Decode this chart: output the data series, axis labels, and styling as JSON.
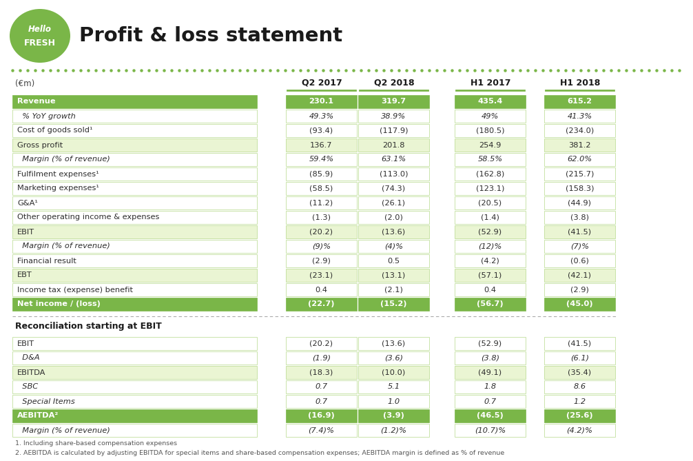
{
  "title": "Profit & loss statement",
  "currency_label": "(€m)",
  "columns": [
    "Q2 2017",
    "Q2 2018",
    "H1 2017",
    "H1 2018"
  ],
  "green_dark": "#7AB648",
  "green_light": "#EAF5D3",
  "white": "#FFFFFF",
  "section1_rows": [
    {
      "label": "Revenue",
      "values": [
        "230.1",
        "319.7",
        "435.4",
        "615.2"
      ],
      "style": "dark_green"
    },
    {
      "label": "  % YoY growth",
      "values": [
        "49.3%",
        "38.9%",
        "49%",
        "41.3%"
      ],
      "style": "italic_plain"
    },
    {
      "label": "Cost of goods sold¹",
      "values": [
        "(93.4)",
        "(117.9)",
        "(180.5)",
        "(234.0)"
      ],
      "style": "plain"
    },
    {
      "label": "Gross profit",
      "values": [
        "136.7",
        "201.8",
        "254.9",
        "381.2"
      ],
      "style": "light_green"
    },
    {
      "label": "  Margin (% of revenue)",
      "values": [
        "59.4%",
        "63.1%",
        "58.5%",
        "62.0%"
      ],
      "style": "italic_plain"
    },
    {
      "label": "Fulfilment expenses¹",
      "values": [
        "(85.9)",
        "(113.0)",
        "(162.8)",
        "(215.7)"
      ],
      "style": "plain"
    },
    {
      "label": "Marketing expenses¹",
      "values": [
        "(58.5)",
        "(74.3)",
        "(123.1)",
        "(158.3)"
      ],
      "style": "plain"
    },
    {
      "label": "G&A¹",
      "values": [
        "(11.2)",
        "(26.1)",
        "(20.5)",
        "(44.9)"
      ],
      "style": "plain"
    },
    {
      "label": "Other operating income & expenses",
      "values": [
        "(1.3)",
        "(2.0)",
        "(1.4)",
        "(3.8)"
      ],
      "style": "plain"
    },
    {
      "label": "EBIT",
      "values": [
        "(20.2)",
        "(13.6)",
        "(52.9)",
        "(41.5)"
      ],
      "style": "light_green"
    },
    {
      "label": "  Margin (% of revenue)",
      "values": [
        "(9)%",
        "(4)%",
        "(12)%",
        "(7)%"
      ],
      "style": "italic_plain"
    },
    {
      "label": "Financial result",
      "values": [
        "(2.9)",
        "0.5",
        "(4.2)",
        "(0.6)"
      ],
      "style": "plain"
    },
    {
      "label": "EBT",
      "values": [
        "(23.1)",
        "(13.1)",
        "(57.1)",
        "(42.1)"
      ],
      "style": "light_green"
    },
    {
      "label": "Income tax (expense) benefit",
      "values": [
        "0.4",
        "(2.1)",
        "0.4",
        "(2.9)"
      ],
      "style": "plain"
    },
    {
      "label": "Net income / (loss)",
      "values": [
        "(22.7)",
        "(15.2)",
        "(56.7)",
        "(45.0)"
      ],
      "style": "dark_green"
    }
  ],
  "section2_title": "Reconciliation starting at EBIT",
  "section2_rows": [
    {
      "label": "EBIT",
      "values": [
        "(20.2)",
        "(13.6)",
        "(52.9)",
        "(41.5)"
      ],
      "style": "plain"
    },
    {
      "label": "  D&A",
      "values": [
        "(1.9)",
        "(3.6)",
        "(3.8)",
        "(6.1)"
      ],
      "style": "italic_plain"
    },
    {
      "label": "EBITDA",
      "values": [
        "(18.3)",
        "(10.0)",
        "(49.1)",
        "(35.4)"
      ],
      "style": "light_green"
    },
    {
      "label": "  SBC",
      "values": [
        "0.7",
        "5.1",
        "1.8",
        "8.6"
      ],
      "style": "italic_plain"
    },
    {
      "label": "  Special Items",
      "values": [
        "0.7",
        "1.0",
        "0.7",
        "1.2"
      ],
      "style": "italic_plain"
    },
    {
      "label": "AEBITDA²",
      "values": [
        "(16.9)",
        "(3.9)",
        "(46.5)",
        "(25.6)"
      ],
      "style": "dark_green"
    },
    {
      "label": "  Margin (% of revenue)",
      "values": [
        "(7.4)%",
        "(1.2)%",
        "(10.7)%",
        "(4.2)%"
      ],
      "style": "italic_plain"
    }
  ],
  "footnotes": [
    "1. Including share-based compensation expenses",
    "2. AEBITDA is calculated by adjusting EBITDA for special items and share-based compensation expenses; AEBITDA margin is defined as % of revenue"
  ]
}
